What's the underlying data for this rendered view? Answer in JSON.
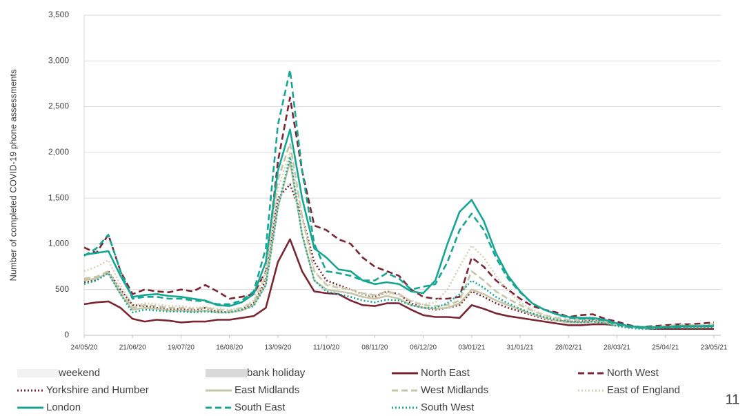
{
  "chart_data": {
    "type": "line",
    "y_label": "Number of completed COVID-19 phone assessments",
    "page_number": "11",
    "x": [
      "24/05/20",
      "31/05/20",
      "07/06/20",
      "14/06/20",
      "21/06/20",
      "28/06/20",
      "05/07/20",
      "12/07/20",
      "19/07/20",
      "26/07/20",
      "02/08/20",
      "09/08/20",
      "16/08/20",
      "23/08/20",
      "30/08/20",
      "06/09/20",
      "13/09/20",
      "20/09/20",
      "27/09/20",
      "04/10/20",
      "11/10/20",
      "18/10/20",
      "25/10/20",
      "01/11/20",
      "08/11/20",
      "15/11/20",
      "22/11/20",
      "29/11/20",
      "06/12/20",
      "13/12/20",
      "20/12/20",
      "27/12/20",
      "03/01/21",
      "10/01/21",
      "17/01/21",
      "24/01/21",
      "31/01/21",
      "07/02/21",
      "14/02/21",
      "21/02/21",
      "28/02/21",
      "07/03/21",
      "14/03/21",
      "21/03/21",
      "28/03/21",
      "04/04/21",
      "11/04/21",
      "18/04/21",
      "25/04/21",
      "02/05/21",
      "09/05/21",
      "16/05/21",
      "23/05/21"
    ],
    "xlim": [
      "24/05/20",
      "23/05/21"
    ],
    "xticks": [
      "24/05/20",
      "21/06/20",
      "19/07/20",
      "16/08/20",
      "13/09/20",
      "11/10/20",
      "08/11/20",
      "06/12/20",
      "03/01/21",
      "31/01/21",
      "28/02/21",
      "28/03/21",
      "25/04/21",
      "23/05/21"
    ],
    "ylim": [
      0,
      3500
    ],
    "yticks": [
      0,
      {
        "value": 500,
        "label": "500"
      },
      {
        "value": 1000,
        "label": "1,000"
      },
      {
        "value": 1500,
        "label": "1,500"
      },
      {
        "value": 2000,
        "label": "2,000"
      },
      {
        "value": 2500,
        "label": "2,500"
      },
      {
        "value": 3000,
        "label": "3,000"
      },
      {
        "value": 3500,
        "label": "3,500"
      }
    ],
    "grid": true,
    "shading": [
      {
        "name": "weekend",
        "color": "#f2f2f2"
      },
      {
        "name": "bank holiday",
        "color": "#d9d9d9"
      }
    ],
    "series": [
      {
        "name": "North East",
        "color": "#7b2432",
        "dash": "solid",
        "values": [
          340,
          360,
          370,
          300,
          180,
          150,
          170,
          160,
          140,
          150,
          150,
          170,
          170,
          190,
          210,
          300,
          800,
          1050,
          700,
          480,
          460,
          450,
          380,
          330,
          320,
          350,
          350,
          280,
          220,
          200,
          200,
          190,
          330,
          290,
          240,
          210,
          190,
          170,
          150,
          130,
          110,
          110,
          120,
          120,
          110,
          100,
          80,
          70,
          70,
          70,
          70,
          70,
          70
        ]
      },
      {
        "name": "North West",
        "color": "#7b2432",
        "dash": "dashed",
        "values": [
          960,
          900,
          1100,
          700,
          450,
          500,
          480,
          470,
          500,
          480,
          550,
          480,
          400,
          420,
          450,
          700,
          1900,
          2600,
          1800,
          1200,
          1150,
          1050,
          1000,
          850,
          750,
          700,
          650,
          500,
          420,
          400,
          400,
          420,
          850,
          750,
          600,
          500,
          400,
          320,
          280,
          250,
          200,
          220,
          230,
          180,
          150,
          110,
          90,
          100,
          110,
          120,
          120,
          130,
          140
        ]
      },
      {
        "name": "Yorkshire and Humber",
        "color": "#7b2432",
        "dash": "dotted",
        "values": [
          580,
          600,
          700,
          500,
          330,
          320,
          300,
          280,
          290,
          270,
          300,
          260,
          250,
          280,
          350,
          600,
          1500,
          1650,
          1300,
          800,
          600,
          550,
          500,
          450,
          420,
          480,
          450,
          350,
          300,
          280,
          300,
          330,
          480,
          420,
          350,
          300,
          260,
          220,
          180,
          160,
          150,
          150,
          170,
          150,
          120,
          100,
          80,
          80,
          90,
          100,
          100,
          100,
          110
        ]
      },
      {
        "name": "East Midlands",
        "color": "#c5c6a6",
        "dash": "solid",
        "values": [
          600,
          620,
          680,
          450,
          280,
          300,
          290,
          270,
          270,
          260,
          270,
          250,
          250,
          270,
          330,
          550,
          1400,
          1900,
          1100,
          600,
          500,
          480,
          460,
          420,
          400,
          430,
          400,
          330,
          300,
          290,
          300,
          350,
          500,
          450,
          380,
          330,
          280,
          230,
          190,
          160,
          140,
          140,
          150,
          140,
          110,
          90,
          80,
          80,
          90,
          90,
          90,
          90,
          100
        ]
      },
      {
        "name": "West Midlands",
        "color": "#c5c6a6",
        "dash": "dashed",
        "values": [
          620,
          640,
          700,
          480,
          300,
          330,
          320,
          300,
          300,
          290,
          300,
          280,
          270,
          300,
          360,
          650,
          1700,
          2100,
          1300,
          700,
          550,
          520,
          500,
          460,
          440,
          480,
          450,
          370,
          330,
          320,
          330,
          380,
          700,
          600,
          480,
          400,
          330,
          270,
          220,
          190,
          170,
          170,
          180,
          160,
          130,
          100,
          90,
          90,
          100,
          110,
          110,
          110,
          120
        ]
      },
      {
        "name": "East of England",
        "color": "#d6d0b4",
        "dash": "dotted",
        "values": [
          700,
          750,
          820,
          550,
          330,
          350,
          340,
          320,
          320,
          300,
          310,
          290,
          280,
          300,
          380,
          700,
          1600,
          2000,
          1300,
          700,
          560,
          530,
          500,
          450,
          430,
          460,
          440,
          380,
          340,
          360,
          500,
          750,
          980,
          850,
          650,
          480,
          360,
          280,
          220,
          180,
          160,
          150,
          160,
          140,
          110,
          90,
          80,
          80,
          90,
          90,
          90,
          100,
          100
        ]
      },
      {
        "name": "London",
        "color": "#17a593",
        "dash": "solid",
        "values": [
          880,
          900,
          920,
          650,
          420,
          440,
          450,
          430,
          420,
          400,
          380,
          330,
          320,
          360,
          450,
          800,
          1800,
          2250,
          1500,
          950,
          850,
          720,
          700,
          600,
          560,
          580,
          560,
          480,
          460,
          600,
          1000,
          1350,
          1480,
          1250,
          900,
          650,
          480,
          350,
          280,
          230,
          200,
          190,
          190,
          170,
          130,
          100,
          90,
          90,
          90,
          100,
          100,
          100,
          100
        ]
      },
      {
        "name": "South East",
        "color": "#17a593",
        "dash": "dashed",
        "values": [
          870,
          950,
          1100,
          700,
          400,
          420,
          420,
          400,
          400,
          380,
          370,
          340,
          340,
          380,
          480,
          950,
          2300,
          2900,
          1800,
          1000,
          700,
          680,
          650,
          600,
          600,
          680,
          620,
          500,
          530,
          560,
          800,
          1150,
          1330,
          1150,
          850,
          620,
          470,
          350,
          280,
          230,
          190,
          180,
          180,
          160,
          120,
          90,
          80,
          80,
          90,
          90,
          100,
          100,
          110
        ]
      },
      {
        "name": "South West",
        "color": "#17a593",
        "dash": "dotted",
        "values": [
          560,
          600,
          680,
          450,
          250,
          280,
          270,
          260,
          260,
          250,
          260,
          250,
          250,
          280,
          320,
          550,
          1400,
          1950,
          1100,
          600,
          480,
          450,
          420,
          380,
          360,
          390,
          380,
          330,
          300,
          300,
          350,
          450,
          600,
          520,
          420,
          350,
          290,
          240,
          200,
          170,
          150,
          140,
          150,
          130,
          100,
          80,
          70,
          70,
          80,
          80,
          80,
          80,
          90
        ]
      }
    ]
  }
}
